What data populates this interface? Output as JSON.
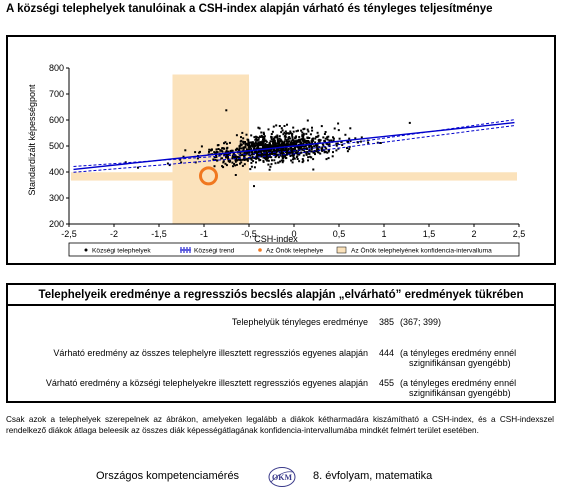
{
  "title": "A községi telephelyek tanulóinak a CSH-index alapján várható és tényleges teljesítménye",
  "chart_data": {
    "type": "scatter",
    "xlabel": "CSH-index",
    "ylabel": "Standardizált képességpont",
    "xlim": [
      -2.5,
      2.5
    ],
    "ylim": [
      200,
      800
    ],
    "x_ticks": [
      "-2,5",
      "-2",
      "-1,5",
      "-1",
      "-0,5",
      "0",
      "0,5",
      "1",
      "1,5",
      "2",
      "2,5"
    ],
    "x_tick_values": [
      -2.5,
      -2,
      -1.5,
      -1,
      -0.5,
      0,
      0.5,
      1,
      1.5,
      2,
      2.5
    ],
    "y_ticks": [
      "200",
      "300",
      "400",
      "500",
      "600",
      "700",
      "800"
    ],
    "y_tick_values": [
      200,
      300,
      400,
      500,
      600,
      700,
      800
    ],
    "trend": {
      "x": [
        -2.45,
        2.45
      ],
      "y": [
        410,
        590
      ],
      "ci_x": [
        -2.45,
        0,
        2.45
      ],
      "ci_upper": [
        421,
        481,
        601
      ],
      "ci_lower": [
        399,
        470,
        579
      ]
    },
    "own_site": {
      "x": -0.95,
      "y": 385
    },
    "own_ci_vertical": {
      "x": [
        -1.35,
        -0.5
      ],
      "y": [
        200,
        775
      ]
    },
    "own_ci_horizontal": {
      "x": [
        -2.5,
        2.5
      ],
      "y": [
        367,
        399
      ]
    },
    "cloud_center": {
      "x": -0.2,
      "y": 455
    },
    "legend": [
      {
        "label": "Községi telephelyek",
        "icon": "dot"
      },
      {
        "label": "Községi trend",
        "icon": "dashed-line"
      },
      {
        "label": "Az Önök telephelye",
        "icon": "orange-dot"
      },
      {
        "label": "Az Önök telephelyének konfidencia-intervalluma",
        "icon": "peach-rect"
      }
    ],
    "colors": {
      "points": "#000000",
      "trend": "#0000cc",
      "own_site": "#f07820",
      "ci": "#fbe2bb"
    }
  },
  "results": {
    "header": "Telephelyeik eredménye a regressziós becslés alapján „elvárható” eredmények tükrében",
    "rows": [
      {
        "label": "Telephelyük tényleges eredménye",
        "value": "385",
        "note": "(367; 399)"
      },
      {
        "label": "Várható eredmény az összes telephelyre illesztett regressziós egyenes alapján",
        "value": "444",
        "note1": "(a tényleges eredmény ennél",
        "note2": "szignifikánsan gyengébb)"
      },
      {
        "label": "Várható eredmény a községi telephelyekre illesztett regressziós egyenes alapján",
        "value": "455",
        "note1": "(a tényleges eredmény ennél",
        "note2": "szignifikánsan gyengébb)"
      }
    ]
  },
  "footnote": "Csak azok a telephelyek szerepelnek az ábrákon, amelyeken legalább a diákok kétharmadára kiszámítható a CSH-index, és a CSH-indexszel rendelkező diákok átlaga beleesik az összes diák képességátlagának konfidencia-intervallumába mindkét felmért terület esetében.",
  "footer": {
    "left": "Országos kompetenciamérés",
    "right": "8. évfolyam, matematika",
    "logo_text": "OKM"
  }
}
